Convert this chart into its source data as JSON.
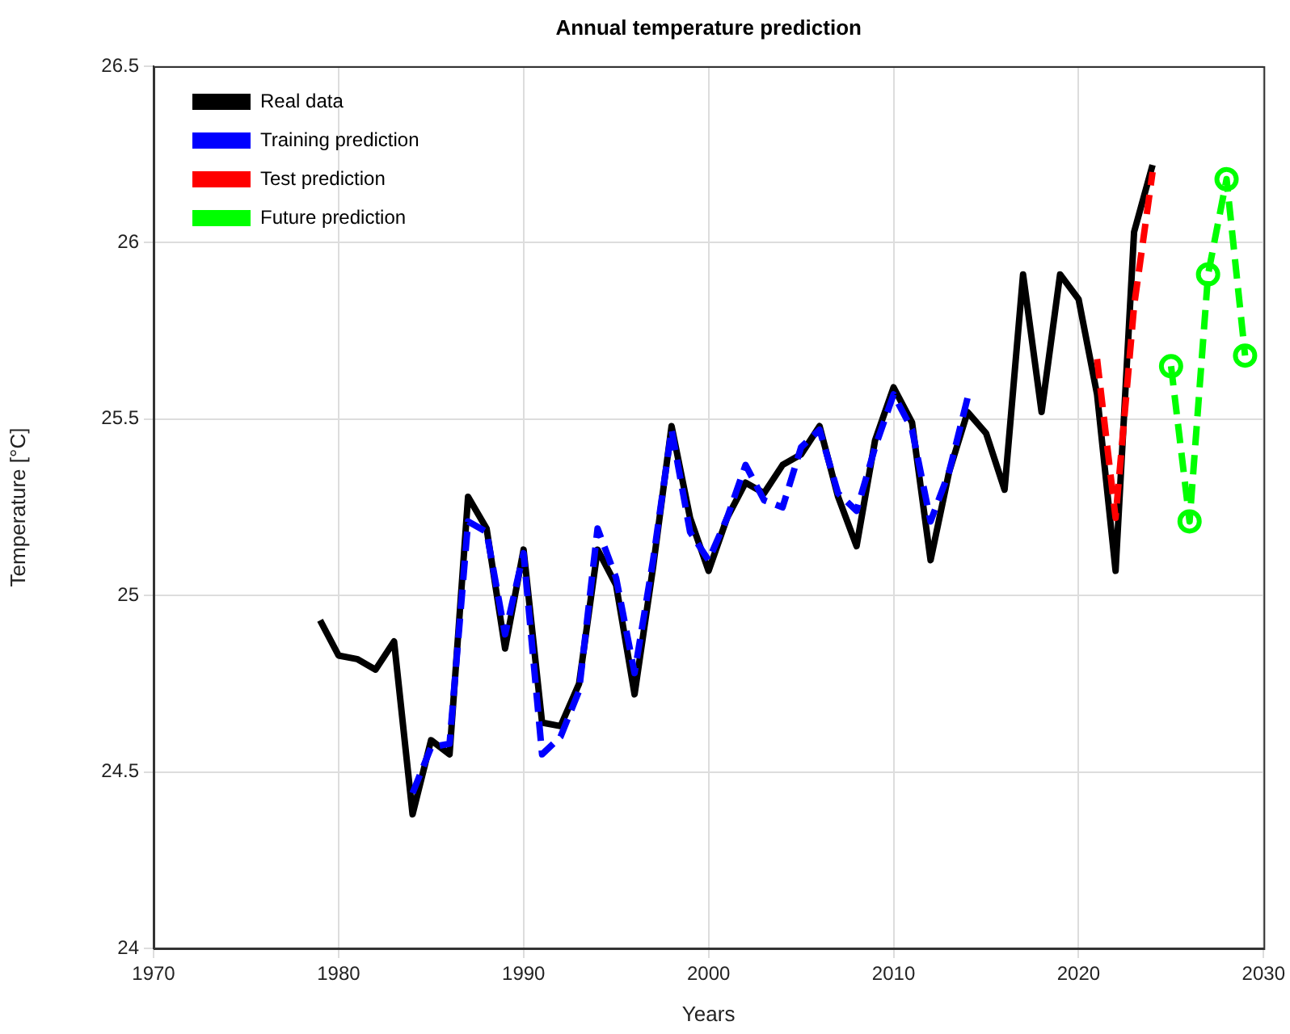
{
  "chart_data": {
    "type": "line",
    "title": "Annual temperature prediction",
    "xlabel": "Years",
    "ylabel": "Temperature [°C]",
    "xlim": [
      1970,
      2030
    ],
    "xticks": [
      1970,
      1980,
      1990,
      2000,
      2010,
      2020,
      2030
    ],
    "ylim": [
      24,
      26.5
    ],
    "yticks": [
      24,
      24.5,
      25,
      25.5,
      26,
      26.5
    ],
    "grid": true,
    "legend": "top left",
    "series": [
      {
        "name": "Real data",
        "color": "#000000",
        "line_style": "solid",
        "marker": "none",
        "x": [
          1979,
          1980,
          1981,
          1982,
          1983,
          1984,
          1985,
          1986,
          1987,
          1988,
          1989,
          1990,
          1991,
          1992,
          1993,
          1994,
          1995,
          1996,
          1997,
          1998,
          1999,
          2000,
          2001,
          2002,
          2003,
          2004,
          2005,
          2006,
          2007,
          2008,
          2009,
          2010,
          2011,
          2012,
          2013,
          2014,
          2015,
          2016,
          2017,
          2018,
          2019,
          2020,
          2021,
          2022,
          2023,
          2024
        ],
        "values": [
          24.93,
          24.83,
          24.82,
          24.79,
          24.87,
          24.38,
          24.59,
          24.55,
          25.28,
          25.19,
          24.85,
          25.13,
          24.64,
          24.63,
          24.75,
          25.13,
          25.03,
          24.72,
          25.08,
          25.48,
          25.22,
          25.07,
          25.22,
          25.32,
          25.29,
          25.37,
          25.4,
          25.48,
          25.28,
          25.14,
          25.44,
          25.59,
          25.49,
          25.1,
          25.35,
          25.52,
          25.46,
          25.3,
          25.91,
          25.52,
          25.91,
          25.84,
          25.57,
          25.07,
          26.03,
          26.22
        ]
      },
      {
        "name": "Training prediction",
        "color": "#0000ff",
        "line_style": "dashed",
        "marker": "none",
        "x": [
          1984,
          1985,
          1986,
          1987,
          1988,
          1989,
          1990,
          1991,
          1992,
          1993,
          1994,
          1995,
          1996,
          1997,
          1998,
          1999,
          2000,
          2001,
          2002,
          2003,
          2004,
          2005,
          2006,
          2007,
          2008,
          2009,
          2010,
          2011,
          2012,
          2013,
          2014
        ],
        "values": [
          24.44,
          24.57,
          24.58,
          25.21,
          25.18,
          24.89,
          25.12,
          24.55,
          24.6,
          24.73,
          25.19,
          25.05,
          24.78,
          25.1,
          25.47,
          25.18,
          25.1,
          25.22,
          25.37,
          25.27,
          25.25,
          25.42,
          25.47,
          25.29,
          25.24,
          25.42,
          25.57,
          25.47,
          25.21,
          25.35,
          25.56
        ]
      },
      {
        "name": "Test prediction",
        "color": "#ff0000",
        "line_style": "dashed",
        "marker": "none",
        "x": [
          2021,
          2022,
          2023,
          2024
        ],
        "values": [
          25.67,
          25.22,
          25.82,
          26.2
        ]
      },
      {
        "name": "Future prediction",
        "color": "#00ff00",
        "line_style": "dashed",
        "marker": "circle",
        "x": [
          2025,
          2026,
          2027,
          2028,
          2029
        ],
        "values": [
          25.65,
          25.21,
          25.91,
          26.18,
          25.68
        ]
      }
    ]
  }
}
